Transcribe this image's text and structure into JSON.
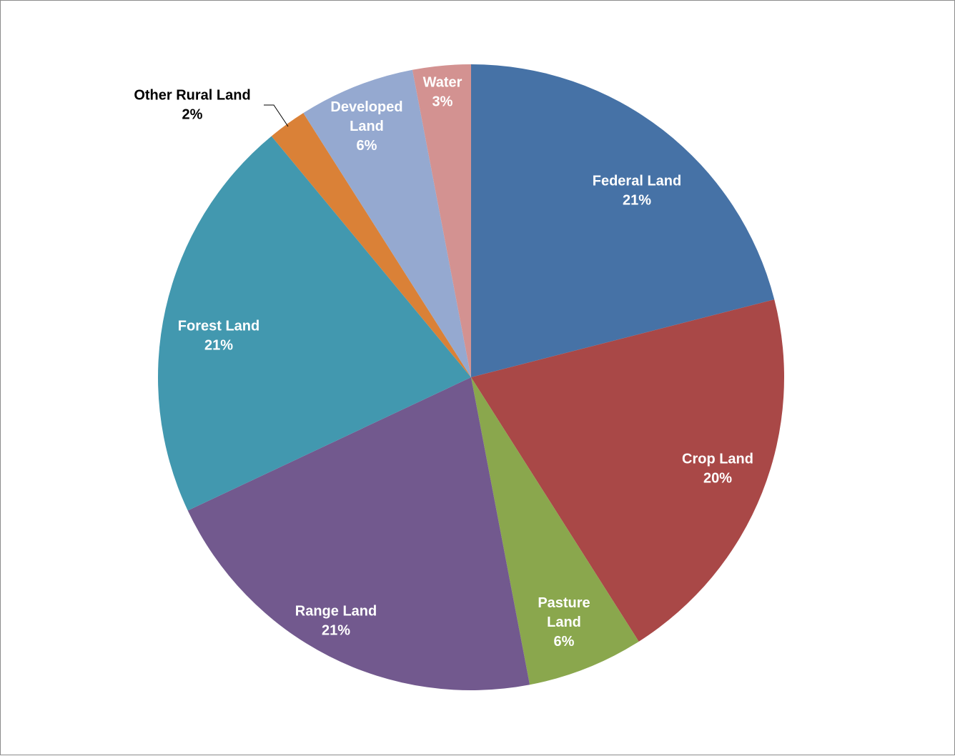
{
  "chart_data": {
    "type": "pie",
    "title": "",
    "start_angle_deg": 0,
    "direction": "clockwise",
    "slices": [
      {
        "label": "Federal Land",
        "value": 21,
        "pct_label": "21%",
        "color": "#4672A6"
      },
      {
        "label": "Crop Land",
        "value": 20,
        "pct_label": "20%",
        "color": "#A94847"
      },
      {
        "label": "Pasture Land",
        "value": 6,
        "pct_label": "6%",
        "color": "#8AA74D"
      },
      {
        "label": "Range Land",
        "value": 21,
        "pct_label": "21%",
        "color": "#72598E"
      },
      {
        "label": "Forest Land",
        "value": 21,
        "pct_label": "21%",
        "color": "#4298AF"
      },
      {
        "label": "Other Rural Land",
        "value": 2,
        "pct_label": "2%",
        "color": "#DA8137"
      },
      {
        "label": "Developed Land",
        "value": 6,
        "pct_label": "6%",
        "color": "#95A9D0"
      },
      {
        "label": "Water",
        "value": 3,
        "pct_label": "3%",
        "color": "#D39291"
      }
    ],
    "label_text_color_inside": "#ffffff",
    "label_text_color_outside": "#000000"
  }
}
